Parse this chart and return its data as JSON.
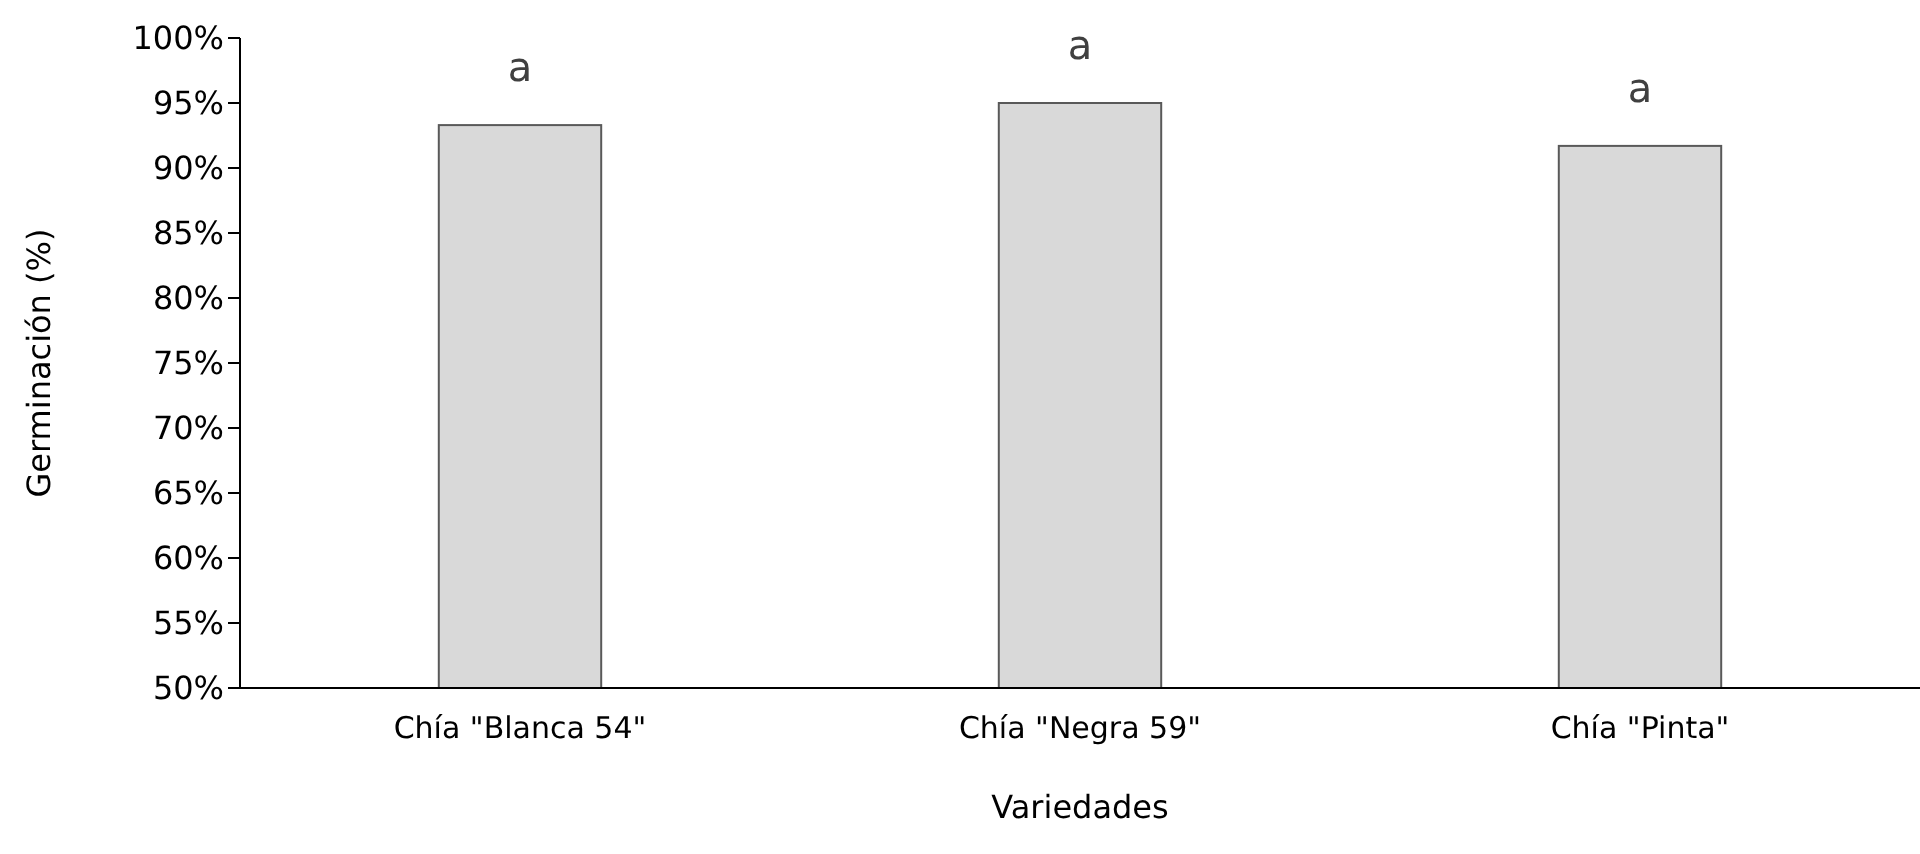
{
  "chart_data": {
    "type": "bar",
    "xlabel": "Variedades",
    "ylabel": "Germinación (%)",
    "categories": [
      "Chía \"Blanca 54\"",
      "Chía \"Negra 59\"",
      "Chía \"Pinta\""
    ],
    "values": [
      93.3,
      95.0,
      91.7
    ],
    "color": "#d9d9d9",
    "ylim": [
      50,
      100
    ],
    "yticks": [
      {
        "value": 50,
        "label": "50%"
      },
      {
        "value": 55,
        "label": "55%"
      },
      {
        "value": 60,
        "label": "60%"
      },
      {
        "value": 65,
        "label": "65%"
      },
      {
        "value": 70,
        "label": "70%"
      },
      {
        "value": 75,
        "label": "75%"
      },
      {
        "value": 80,
        "label": "80%"
      },
      {
        "value": 85,
        "label": "85%"
      },
      {
        "value": 90,
        "label": "90%"
      },
      {
        "value": 95,
        "label": "95%"
      },
      {
        "value": 100,
        "label": "100%"
      }
    ],
    "annotations": [
      "a",
      "a",
      "a"
    ],
    "grid": false
  }
}
